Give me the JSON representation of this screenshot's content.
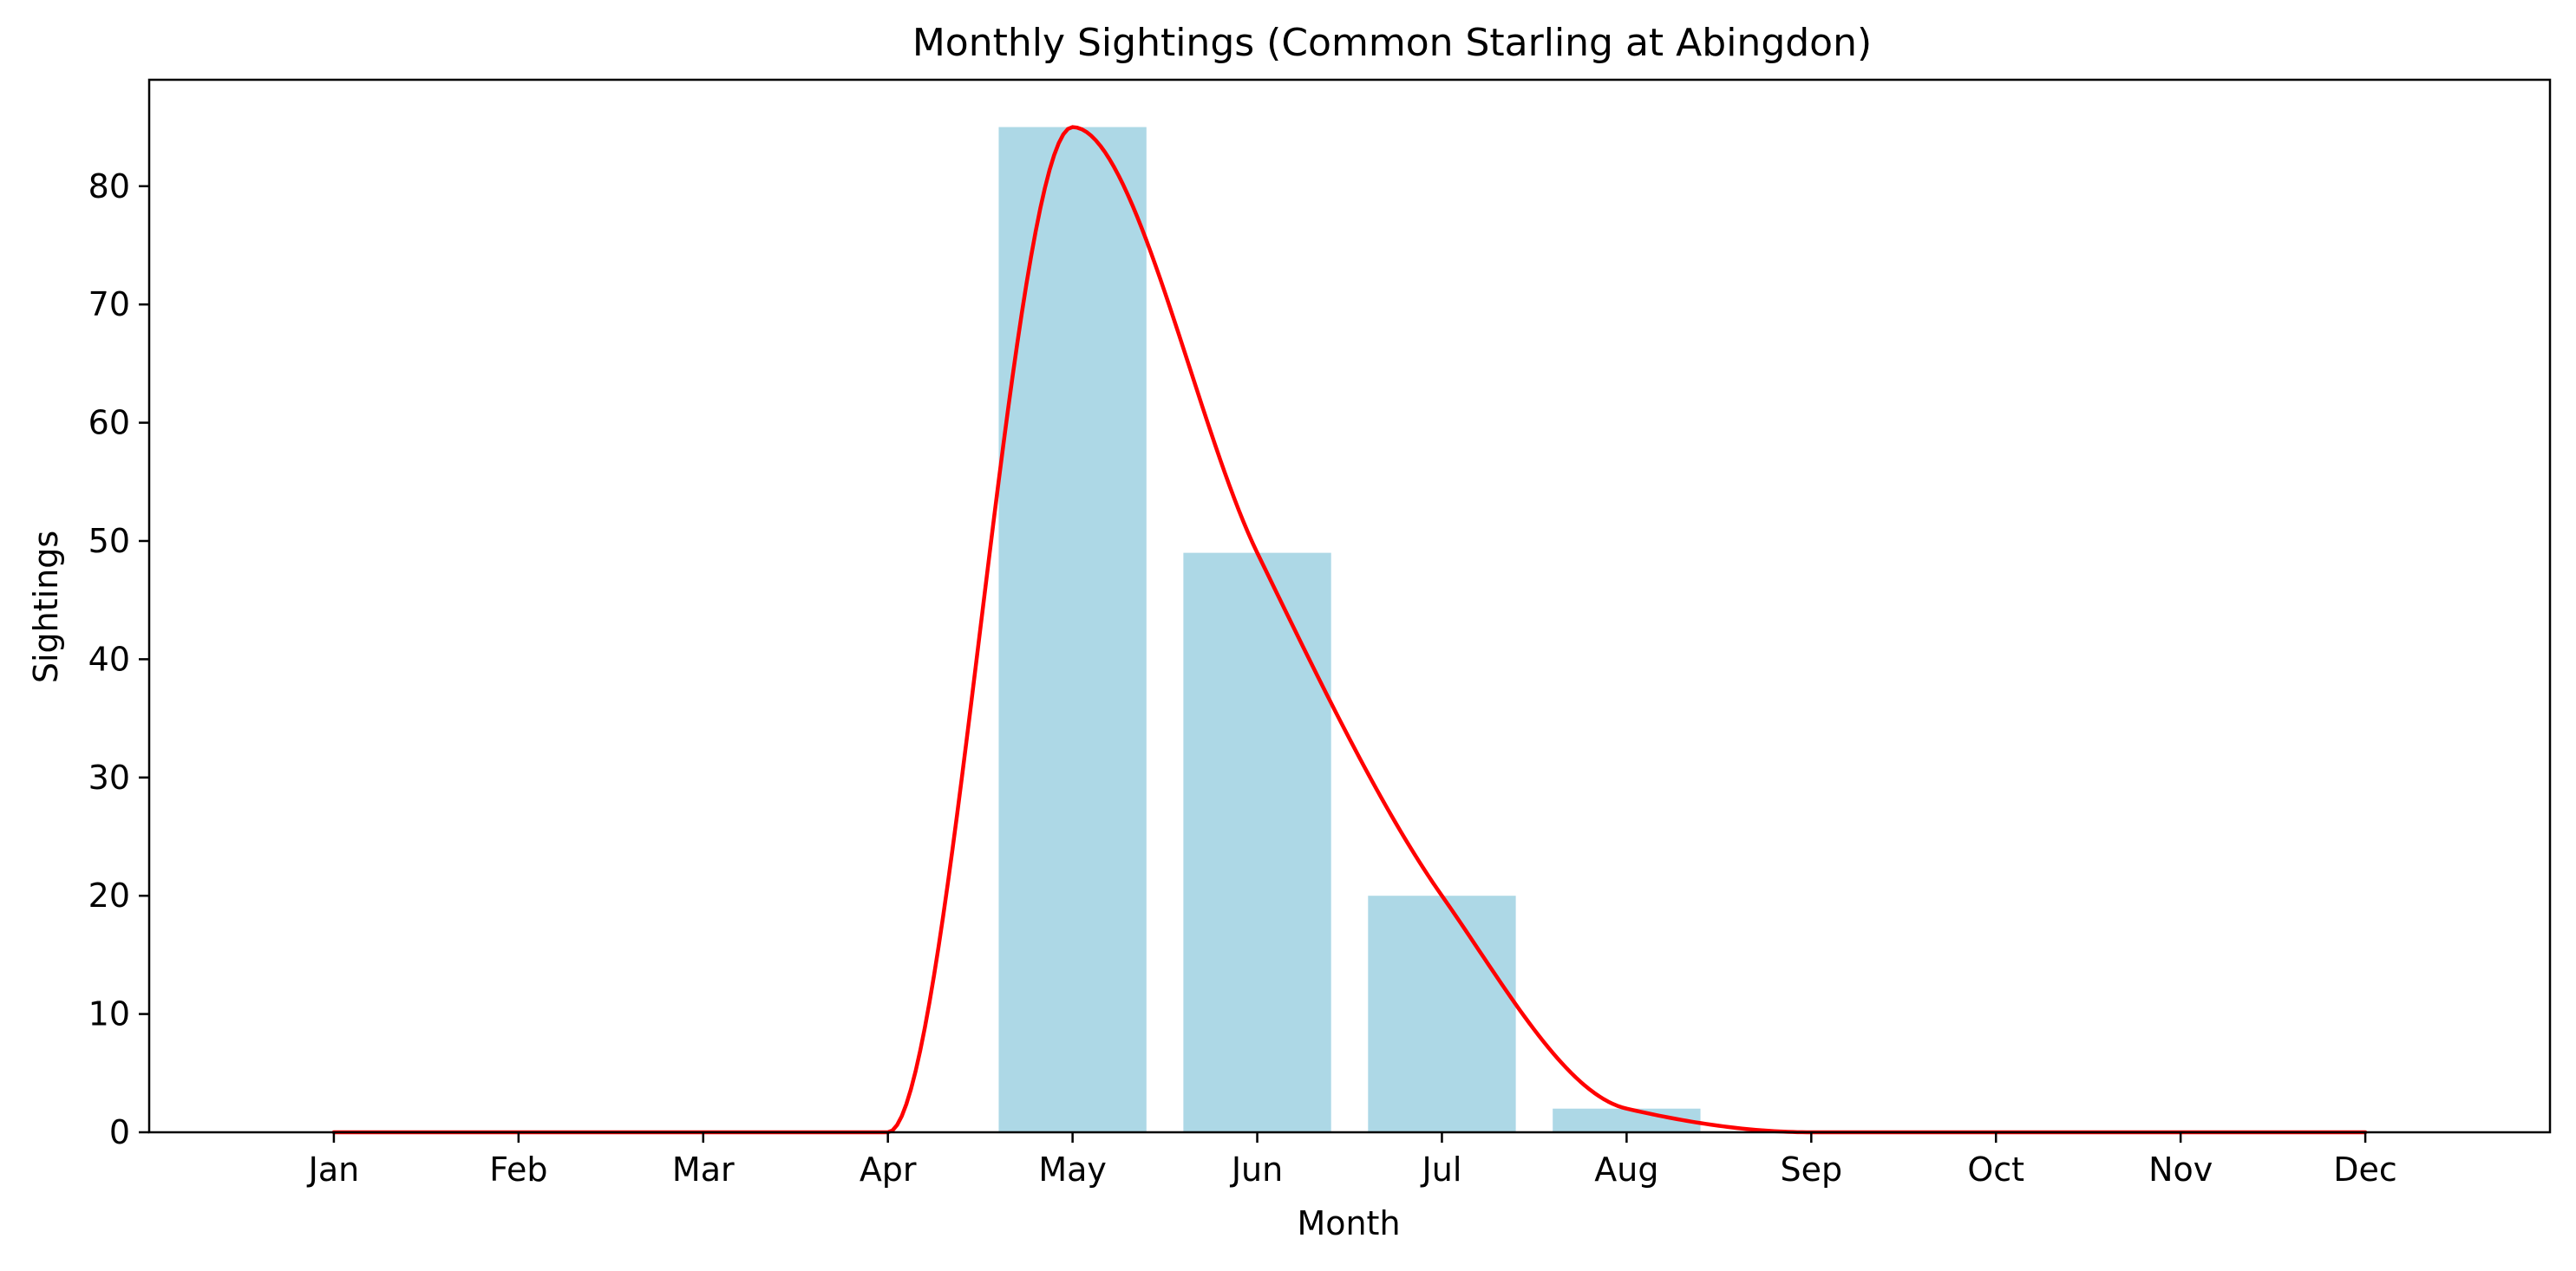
{
  "chart_data": {
    "type": "bar",
    "title": "Monthly Sightings (Common Starling at Abingdon)",
    "xlabel": "Month",
    "ylabel": "Sightings",
    "categories": [
      "Jan",
      "Feb",
      "Mar",
      "Apr",
      "May",
      "Jun",
      "Jul",
      "Aug",
      "Sep",
      "Oct",
      "Nov",
      "Dec"
    ],
    "series": [
      {
        "values": [
          0,
          0,
          0,
          0,
          85,
          49,
          20,
          2,
          0,
          0,
          0,
          0
        ],
        "color": "#add8e6",
        "kind": "bar"
      },
      {
        "values": [
          0,
          0,
          0,
          0,
          85,
          49,
          20,
          2,
          0,
          0,
          0,
          0
        ],
        "color": "#ff0000",
        "kind": "smoothed line"
      }
    ],
    "ylim": [
      0,
      89
    ],
    "yticks": [
      0,
      10,
      20,
      30,
      40,
      50,
      60,
      70,
      80
    ],
    "grid": false,
    "legend": "none"
  }
}
